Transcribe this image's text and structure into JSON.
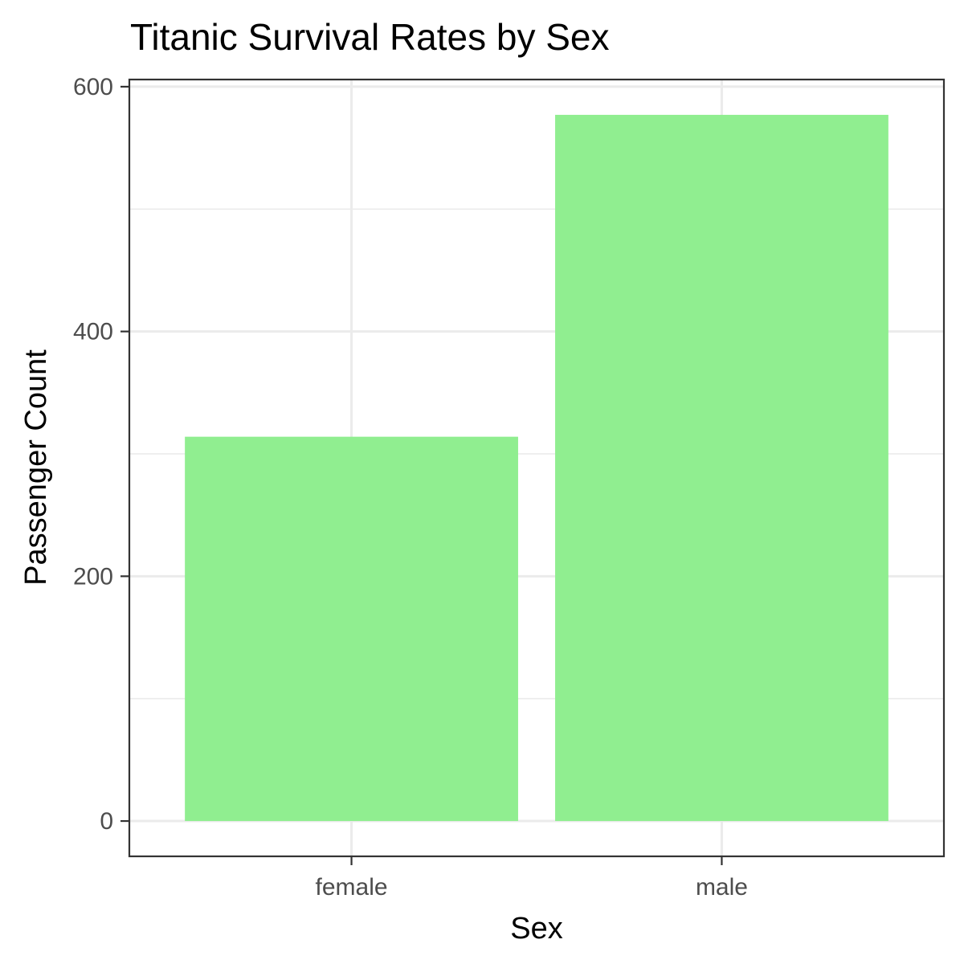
{
  "chart_data": {
    "type": "bar",
    "title": "Titanic Survival Rates by Sex",
    "xlabel": "Sex",
    "ylabel": "Passenger Count",
    "categories": [
      "female",
      "male"
    ],
    "values": [
      314,
      577
    ],
    "ylim": [
      -28.85,
      605.85
    ],
    "yticks": [
      0,
      200,
      400,
      600
    ],
    "yticks_minor": [
      100,
      300,
      500
    ],
    "grid": true,
    "legend": "none",
    "colors": {
      "bar": "#90EE90",
      "panel_border": "#333333",
      "grid": "#EBEBEB",
      "tick_label": "#4D4D4D",
      "axis_title": "#000000"
    }
  }
}
